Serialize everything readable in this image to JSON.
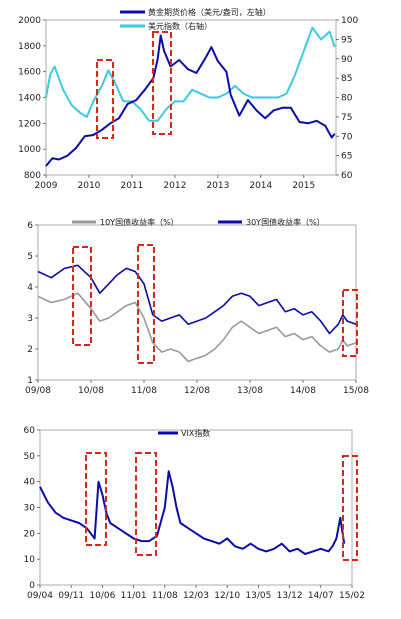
{
  "chart_data": [
    {
      "type": "line",
      "x_ticks": [
        "2009",
        "2010",
        "2011",
        "2012",
        "2013",
        "2014",
        "2015"
      ],
      "xlim": [
        2009,
        2015.75
      ],
      "y_left": {
        "ticks": [
          800,
          1000,
          1200,
          1400,
          1600,
          1800,
          2000
        ],
        "lim": [
          800,
          2000
        ]
      },
      "y_right": {
        "ticks": [
          60,
          65,
          70,
          75,
          80,
          85,
          90,
          95,
          100
        ],
        "lim": [
          60,
          100
        ]
      },
      "series": [
        {
          "name": "黄金期货价格（美元/盎司，左轴）",
          "axis": "left",
          "color": "#0b0ba8",
          "x": [
            2009.0,
            2009.15,
            2009.3,
            2009.5,
            2009.7,
            2009.9,
            2010.1,
            2010.3,
            2010.5,
            2010.7,
            2010.9,
            2011.1,
            2011.3,
            2011.5,
            2011.6,
            2011.67,
            2011.75,
            2011.9,
            2012.1,
            2012.3,
            2012.5,
            2012.7,
            2012.85,
            2013.0,
            2013.2,
            2013.3,
            2013.5,
            2013.7,
            2013.9,
            2014.1,
            2014.3,
            2014.5,
            2014.7,
            2014.9,
            2015.1,
            2015.3,
            2015.5,
            2015.65,
            2015.72
          ],
          "y": [
            870,
            930,
            920,
            950,
            1010,
            1100,
            1110,
            1150,
            1200,
            1240,
            1350,
            1380,
            1460,
            1550,
            1700,
            1880,
            1760,
            1640,
            1690,
            1620,
            1590,
            1700,
            1790,
            1680,
            1600,
            1420,
            1260,
            1380,
            1300,
            1240,
            1300,
            1320,
            1320,
            1210,
            1200,
            1220,
            1180,
            1090,
            1120
          ]
        },
        {
          "name": "美元指数（右轴）",
          "axis": "right",
          "color": "#3ec9e0",
          "x": [
            2009.0,
            2009.1,
            2009.2,
            2009.4,
            2009.6,
            2009.8,
            2009.95,
            2010.1,
            2010.3,
            2010.45,
            2010.6,
            2010.8,
            2011.0,
            2011.2,
            2011.4,
            2011.6,
            2011.8,
            2012.0,
            2012.2,
            2012.4,
            2012.6,
            2012.8,
            2013.0,
            2013.2,
            2013.4,
            2013.6,
            2013.8,
            2014.0,
            2014.2,
            2014.4,
            2014.6,
            2014.8,
            2015.0,
            2015.2,
            2015.4,
            2015.6,
            2015.72
          ],
          "y": [
            80,
            86,
            88,
            82,
            78,
            76,
            75,
            79,
            83,
            87,
            84,
            79,
            79,
            77,
            74,
            74,
            77,
            79,
            79,
            82,
            81,
            80,
            80,
            81,
            83,
            81,
            80,
            80,
            80,
            80,
            81,
            86,
            92,
            98,
            95,
            97,
            93
          ]
        }
      ]
    },
    {
      "type": "line",
      "x_ticks": [
        "09/08",
        "10/08",
        "11/08",
        "12/08",
        "13/08",
        "14/08",
        "15/08"
      ],
      "xlim": [
        0,
        72
      ],
      "ylim": [
        1,
        6
      ],
      "y_ticks": [
        1,
        2,
        3,
        4,
        5,
        6
      ],
      "series": [
        {
          "name": "10Y国债收益率（%）",
          "color": "#9a9a9a",
          "x": [
            0,
            3,
            6,
            9,
            12,
            14,
            16,
            18,
            20,
            22,
            24,
            26,
            28,
            30,
            32,
            34,
            36,
            38,
            40,
            42,
            44,
            46,
            48,
            50,
            52,
            54,
            56,
            58,
            60,
            62,
            64,
            66,
            68,
            69,
            70,
            72
          ],
          "y": [
            3.7,
            3.5,
            3.6,
            3.8,
            3.3,
            2.9,
            3.0,
            3.2,
            3.4,
            3.5,
            3.0,
            2.2,
            1.9,
            2.0,
            1.9,
            1.6,
            1.7,
            1.8,
            2.0,
            2.3,
            2.7,
            2.9,
            2.7,
            2.5,
            2.6,
            2.7,
            2.4,
            2.5,
            2.3,
            2.4,
            2.1,
            1.9,
            2.0,
            2.3,
            2.1,
            2.2
          ]
        },
        {
          "name": "30Y国债收益率（%）",
          "color": "#0b0ba8",
          "x": [
            0,
            3,
            6,
            9,
            12,
            14,
            16,
            18,
            20,
            22,
            24,
            26,
            28,
            30,
            32,
            34,
            36,
            38,
            40,
            42,
            44,
            46,
            48,
            50,
            52,
            54,
            56,
            58,
            60,
            62,
            64,
            66,
            68,
            69,
            70,
            72
          ],
          "y": [
            4.5,
            4.3,
            4.6,
            4.7,
            4.3,
            3.8,
            4.1,
            4.4,
            4.6,
            4.5,
            4.1,
            3.1,
            2.9,
            3.0,
            3.1,
            2.8,
            2.9,
            3.0,
            3.2,
            3.4,
            3.7,
            3.8,
            3.7,
            3.4,
            3.5,
            3.6,
            3.2,
            3.3,
            3.1,
            3.2,
            2.9,
            2.5,
            2.8,
            3.1,
            2.9,
            2.8
          ]
        }
      ]
    },
    {
      "type": "line",
      "x_ticks": [
        "09/04",
        "09/11",
        "10/06",
        "11/01",
        "11/08",
        "12/03",
        "12/10",
        "13/05",
        "13/12",
        "14/07",
        "15/02"
      ],
      "xlim": [
        0,
        80
      ],
      "ylim": [
        0,
        60
      ],
      "y_ticks": [
        0,
        10,
        20,
        30,
        40,
        50,
        60
      ],
      "series": [
        {
          "name": "VIX指数",
          "color": "#0b0ba8",
          "x": [
            0,
            2,
            4,
            6,
            8,
            10,
            12,
            14,
            15,
            16,
            17,
            18,
            20,
            22,
            24,
            26,
            28,
            30,
            32,
            33,
            34,
            35,
            36,
            38,
            40,
            42,
            44,
            46,
            48,
            50,
            52,
            54,
            56,
            58,
            60,
            62,
            64,
            66,
            68,
            70,
            72,
            74,
            75,
            76,
            77,
            78
          ],
          "y": [
            38,
            32,
            28,
            26,
            25,
            24,
            22,
            18,
            40,
            35,
            28,
            24,
            22,
            20,
            18,
            17,
            17,
            19,
            30,
            44,
            38,
            30,
            24,
            22,
            20,
            18,
            17,
            16,
            18,
            15,
            14,
            16,
            14,
            13,
            14,
            16,
            13,
            14,
            12,
            13,
            14,
            13,
            15,
            18,
            26,
            16
          ]
        }
      ]
    }
  ]
}
